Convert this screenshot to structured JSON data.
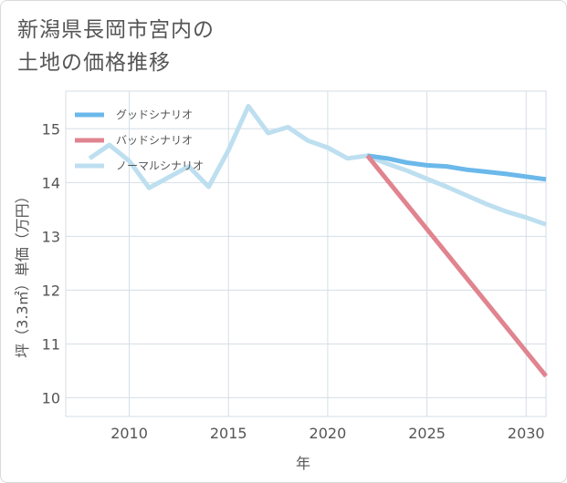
{
  "title_line1": "新潟県長岡市宮内の",
  "title_line2": "土地の価格推移",
  "chart_data": {
    "type": "line",
    "title": "新潟県長岡市宮内の土地の価格推移",
    "xlabel": "年",
    "ylabel": "坪（3.3㎡）単価（万円）",
    "xlim": [
      2006.8,
      2031
    ],
    "ylim": [
      9.65,
      15.7
    ],
    "xticks": [
      2010,
      2015,
      2020,
      2025,
      2030
    ],
    "yticks": [
      10,
      11,
      12,
      13,
      14,
      15
    ],
    "grid": true,
    "legend_position": "top-left",
    "series": [
      {
        "name": "グッドシナリオ",
        "color": "#6bb8ea",
        "x": [
          2022,
          2023,
          2024,
          2025,
          2026,
          2027,
          2028,
          2029,
          2030,
          2031
        ],
        "y": [
          14.5,
          14.45,
          14.37,
          14.32,
          14.3,
          14.24,
          14.2,
          14.16,
          14.11,
          14.06
        ]
      },
      {
        "name": "バッドシナリオ",
        "color": "#e0848f",
        "x": [
          2022,
          2031
        ],
        "y": [
          14.5,
          10.4
        ]
      },
      {
        "name": "ノーマルシナリオ",
        "color": "#bddff0",
        "x": [
          2008,
          2009,
          2010,
          2011,
          2012,
          2013,
          2014,
          2015,
          2016,
          2017,
          2018,
          2019,
          2020,
          2021,
          2022,
          2023,
          2024,
          2025,
          2026,
          2027,
          2028,
          2029,
          2030,
          2031
        ],
        "y": [
          14.45,
          14.7,
          14.4,
          13.9,
          14.1,
          14.3,
          13.92,
          14.6,
          15.42,
          14.92,
          15.03,
          14.78,
          14.65,
          14.45,
          14.5,
          14.35,
          14.22,
          14.07,
          13.92,
          13.76,
          13.6,
          13.46,
          13.35,
          13.22
        ]
      }
    ]
  }
}
